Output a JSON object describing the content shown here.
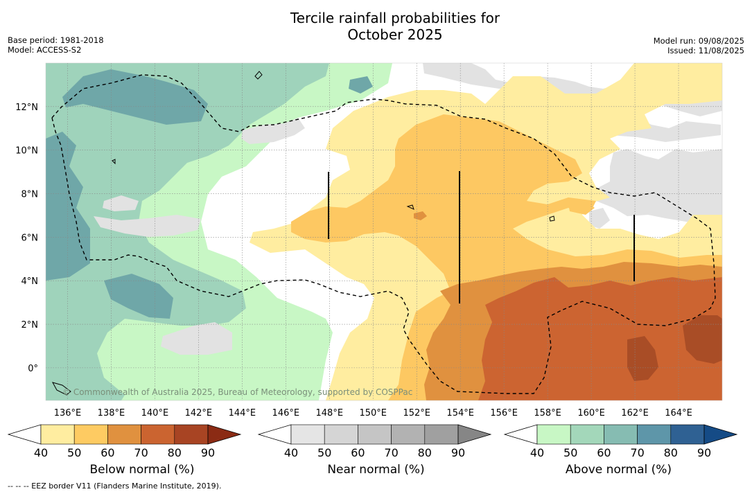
{
  "title": {
    "line1": "Tercile rainfall probabilities for",
    "line2": "October 2025"
  },
  "meta_left": {
    "base_period": "Base period: 1981-2018",
    "model": "Model: ACCESS-S2"
  },
  "meta_right": {
    "model_run": "Model run: 09/08/2025",
    "issued": "Issued: 11/08/2025"
  },
  "map": {
    "lon_range": [
      135,
      166
    ],
    "lat_range": [
      -1.5,
      14
    ],
    "lon_ticks": [
      "136°E",
      "138°E",
      "140°E",
      "142°E",
      "144°E",
      "146°E",
      "148°E",
      "150°E",
      "152°E",
      "154°E",
      "156°E",
      "158°E",
      "160°E",
      "162°E",
      "164°E"
    ],
    "lat_ticks": [
      "0°",
      "2°N",
      "4°N",
      "6°N",
      "8°N",
      "10°N",
      "12°N"
    ],
    "copyright": "© Commonwealth of Australia 2025, Bureau of Meteorology, supported by COSPPac",
    "grid": true
  },
  "colorbars": [
    {
      "label": "Below normal (%)",
      "ticks": [
        "40",
        "50",
        "60",
        "70",
        "80",
        "90"
      ],
      "colors": [
        "#ffeda0",
        "#fecb62",
        "#e0913f",
        "#cb6430",
        "#a84423",
        "#8b2b14"
      ]
    },
    {
      "label": "Near normal (%)",
      "ticks": [
        "40",
        "50",
        "60",
        "70",
        "80",
        "90"
      ],
      "colors": [
        "#e5e5e5",
        "#d5d5d5",
        "#c5c5c5",
        "#b2b2b2",
        "#a0a0a0",
        "#868686"
      ]
    },
    {
      "label": "Above normal (%)",
      "ticks": [
        "40",
        "50",
        "60",
        "70",
        "80",
        "90"
      ],
      "colors": [
        "#c8f7c5",
        "#a3d7ba",
        "#86bcb2",
        "#5e96a9",
        "#2f6193",
        "#154b86"
      ]
    }
  ],
  "legend_colors": {
    "below_50": "#ffeda0",
    "below_60": "#fecb62",
    "below_70": "#e0913f",
    "below_80": "#cb6430",
    "below_90": "#a84423",
    "near_40": "#e2e2e2",
    "above_40": "#c8f7c5",
    "above_50": "#9fd3bb",
    "above_60": "#6da8a8"
  },
  "footnote": "--  --  -- EEZ border V11 (Flanders Marine Institute, 2019)."
}
